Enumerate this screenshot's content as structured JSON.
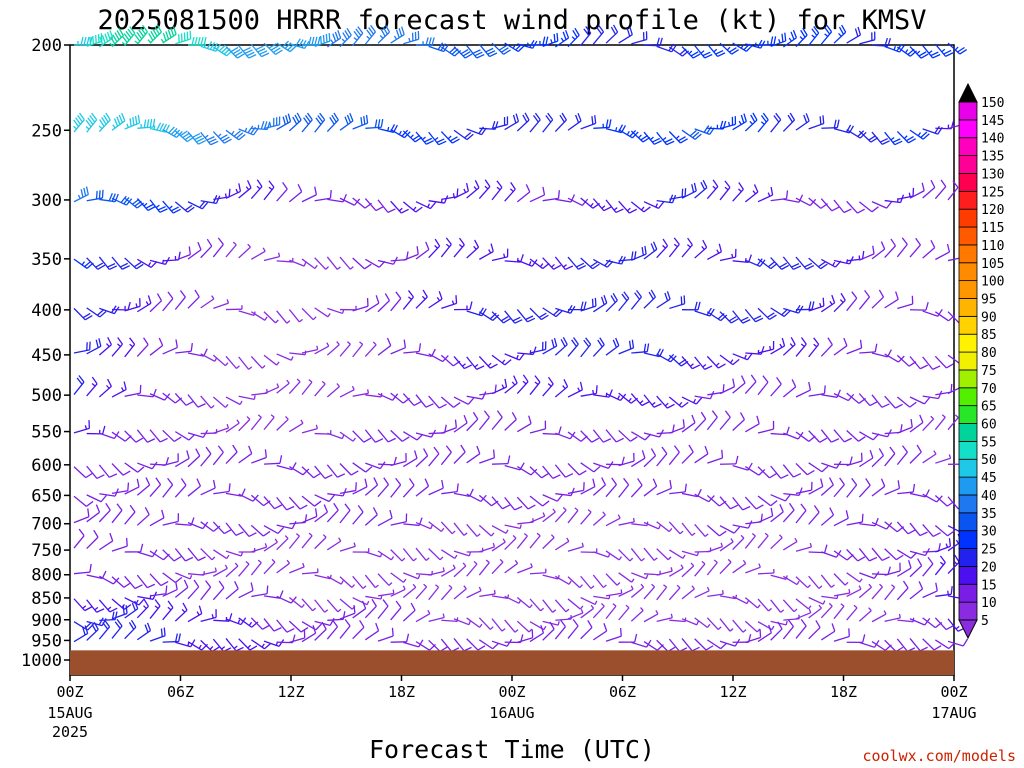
{
  "title": "2025081500 HRRR forecast wind profile (kt) for KMSV",
  "credit": "coolwx.com/models",
  "chart_data": {
    "type": "wind-barb time-height",
    "xlabel": "Forecast Time (UTC)",
    "ylabel": "",
    "ylevels": [
      200,
      250,
      300,
      350,
      400,
      450,
      500,
      550,
      600,
      650,
      700,
      750,
      800,
      850,
      900,
      950,
      1000
    ],
    "x_hours": [
      0,
      48
    ],
    "x_ticks": [
      {
        "hour": 0,
        "label": "00Z",
        "sub": "15AUG",
        "sub2": "2025"
      },
      {
        "hour": 6,
        "label": "06Z",
        "sub": "",
        "sub2": ""
      },
      {
        "hour": 12,
        "label": "12Z",
        "sub": "",
        "sub2": ""
      },
      {
        "hour": 18,
        "label": "18Z",
        "sub": "",
        "sub2": ""
      },
      {
        "hour": 24,
        "label": "00Z",
        "sub": "16AUG",
        "sub2": ""
      },
      {
        "hour": 30,
        "label": "06Z",
        "sub": "",
        "sub2": ""
      },
      {
        "hour": 36,
        "label": "12Z",
        "sub": "",
        "sub2": ""
      },
      {
        "hour": 42,
        "label": "18Z",
        "sub": "",
        "sub2": ""
      },
      {
        "hour": 48,
        "label": "00Z",
        "sub": "17AUG",
        "sub2": ""
      }
    ],
    "ground_pressure_hpa": 975,
    "ground_color": "#9c4f2c",
    "colorbar": {
      "units": "kt",
      "levels": [
        5,
        10,
        15,
        20,
        25,
        30,
        35,
        40,
        45,
        50,
        55,
        60,
        65,
        70,
        75,
        80,
        85,
        90,
        95,
        100,
        105,
        110,
        115,
        120,
        125,
        130,
        135,
        140,
        145,
        150
      ],
      "colors": [
        "#8a2be2",
        "#7a1ee6",
        "#4b0ff0",
        "#2222ee",
        "#0033ff",
        "#0a55f0",
        "#1e78f0",
        "#1e9bf0",
        "#1ec8e6",
        "#14e0c8",
        "#00d49a",
        "#28e628",
        "#52f000",
        "#a0f000",
        "#f0f000",
        "#fff200",
        "#ffd200",
        "#ffb400",
        "#ff9600",
        "#ff8c00",
        "#ff7800",
        "#ff5a00",
        "#ff3c00",
        "#ff1e1e",
        "#ff0050",
        "#ff0096",
        "#ff00be",
        "#ff00ff",
        "#e800e8"
      ]
    },
    "wind_profile": [
      {
        "pressure": 200,
        "speed_kt": [
          48,
          55,
          58,
          55,
          50,
          45,
          42,
          42,
          40,
          38,
          36,
          36,
          34,
          32,
          30,
          28,
          26,
          24,
          20,
          22,
          25,
          26,
          28,
          30,
          28,
          26,
          24,
          26,
          30,
          25
        ]
      },
      {
        "pressure": 250,
        "speed_kt": [
          45,
          50,
          48,
          44,
          40,
          38,
          36,
          34,
          32,
          30,
          30,
          28,
          26,
          24,
          22,
          22,
          24,
          25,
          26,
          28,
          30,
          30,
          28,
          25,
          22,
          22,
          24,
          26,
          25,
          12
        ]
      },
      {
        "pressure": 300,
        "speed_kt": [
          35,
          32,
          30,
          26,
          22,
          18,
          16,
          14,
          12,
          12,
          14,
          16,
          18,
          18,
          16,
          14,
          14,
          16,
          18,
          20,
          22,
          20,
          18,
          15,
          12,
          12,
          14,
          16,
          14,
          10
        ]
      },
      {
        "pressure": 350,
        "speed_kt": [
          26,
          22,
          20,
          16,
          12,
          10,
          8,
          8,
          8,
          10,
          12,
          14,
          16,
          18,
          18,
          18,
          20,
          22,
          22,
          20,
          18,
          18,
          20,
          22,
          22,
          18,
          14,
          12,
          10,
          10
        ]
      },
      {
        "pressure": 400,
        "speed_kt": [
          24,
          20,
          16,
          12,
          10,
          8,
          6,
          6,
          8,
          10,
          12,
          16,
          18,
          20,
          20,
          22,
          24,
          24,
          24,
          22,
          20,
          20,
          22,
          22,
          20,
          16,
          14,
          12,
          10,
          10
        ]
      },
      {
        "pressure": 450,
        "speed_kt": [
          22,
          18,
          14,
          12,
          10,
          8,
          6,
          6,
          6,
          8,
          10,
          12,
          14,
          16,
          18,
          20,
          20,
          20,
          22,
          22,
          20,
          18,
          18,
          18,
          16,
          14,
          12,
          12,
          10,
          10
        ]
      },
      {
        "pressure": 500,
        "speed_kt": [
          20,
          16,
          14,
          12,
          10,
          8,
          6,
          6,
          6,
          8,
          10,
          12,
          12,
          14,
          16,
          16,
          18,
          18,
          18,
          18,
          16,
          14,
          14,
          14,
          14,
          12,
          12,
          10,
          10,
          10
        ]
      },
      {
        "pressure": 550,
        "speed_kt": [
          16,
          14,
          12,
          10,
          10,
          8,
          8,
          8,
          8,
          10,
          10,
          12,
          12,
          14,
          14,
          14,
          14,
          14,
          14,
          14,
          12,
          12,
          12,
          12,
          12,
          12,
          10,
          10,
          10,
          8
        ]
      },
      {
        "pressure": 600,
        "speed_kt": [
          14,
          12,
          12,
          10,
          10,
          10,
          10,
          10,
          10,
          10,
          10,
          10,
          10,
          12,
          12,
          12,
          12,
          12,
          12,
          12,
          10,
          10,
          10,
          10,
          10,
          10,
          10,
          10,
          10,
          8
        ]
      },
      {
        "pressure": 650,
        "speed_kt": [
          14,
          12,
          12,
          12,
          10,
          10,
          10,
          10,
          10,
          10,
          10,
          10,
          10,
          10,
          10,
          10,
          10,
          10,
          10,
          10,
          10,
          10,
          10,
          10,
          10,
          10,
          10,
          10,
          12,
          14
        ]
      },
      {
        "pressure": 700,
        "speed_kt": [
          12,
          12,
          12,
          10,
          10,
          10,
          10,
          10,
          10,
          10,
          10,
          10,
          8,
          8,
          8,
          8,
          8,
          8,
          8,
          8,
          8,
          10,
          10,
          10,
          10,
          10,
          10,
          10,
          12,
          16
        ]
      },
      {
        "pressure": 750,
        "speed_kt": [
          12,
          12,
          10,
          10,
          10,
          8,
          8,
          8,
          8,
          8,
          8,
          8,
          8,
          8,
          8,
          8,
          8,
          8,
          8,
          8,
          8,
          8,
          8,
          8,
          10,
          10,
          10,
          10,
          12,
          18
        ]
      },
      {
        "pressure": 800,
        "speed_kt": [
          14,
          14,
          12,
          10,
          8,
          8,
          8,
          8,
          8,
          8,
          8,
          8,
          8,
          8,
          8,
          8,
          8,
          8,
          8,
          8,
          8,
          8,
          8,
          8,
          8,
          8,
          10,
          10,
          12,
          18
        ]
      },
      {
        "pressure": 850,
        "speed_kt": [
          18,
          18,
          16,
          14,
          14,
          12,
          10,
          10,
          8,
          8,
          8,
          8,
          8,
          8,
          8,
          8,
          8,
          8,
          8,
          8,
          8,
          8,
          8,
          8,
          8,
          8,
          8,
          10,
          12,
          18
        ]
      },
      {
        "pressure": 900,
        "speed_kt": [
          20,
          20,
          20,
          18,
          16,
          16,
          14,
          12,
          10,
          10,
          10,
          10,
          8,
          8,
          8,
          8,
          8,
          8,
          8,
          8,
          8,
          8,
          8,
          8,
          8,
          8,
          8,
          8,
          12,
          16
        ]
      },
      {
        "pressure": 950,
        "speed_kt": [
          22,
          22,
          22,
          20,
          18,
          16,
          16,
          14,
          12,
          10,
          10,
          10,
          10,
          10,
          10,
          10,
          10,
          10,
          10,
          10,
          10,
          10,
          10,
          10,
          10,
          10,
          10,
          10,
          10,
          14
        ]
      }
    ]
  }
}
